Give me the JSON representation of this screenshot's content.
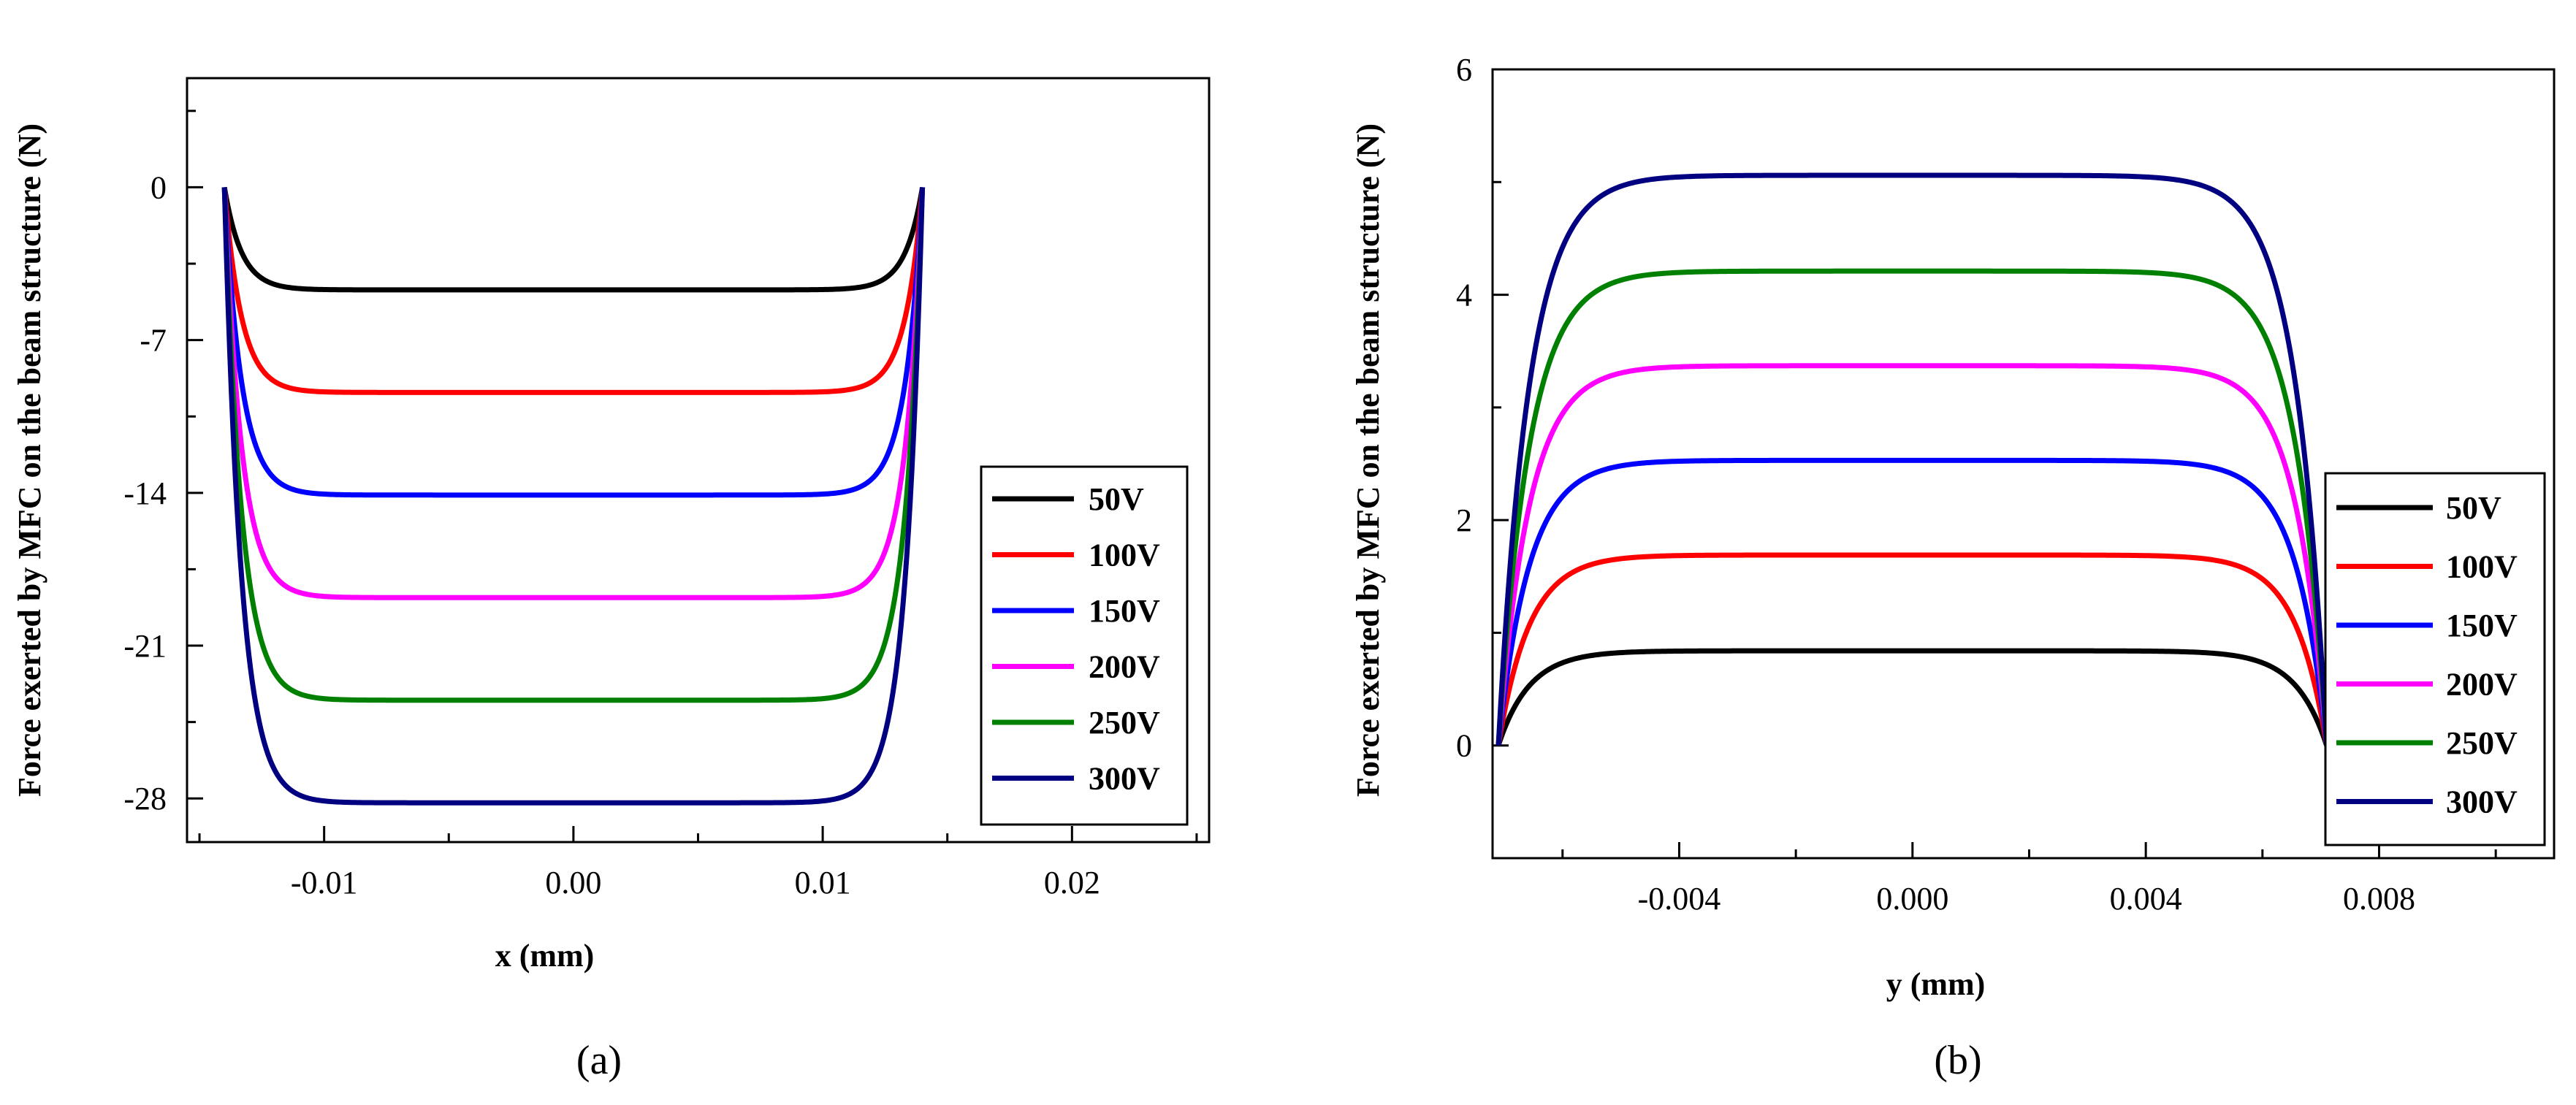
{
  "chart_data": [
    {
      "type": "line",
      "panel_label": "(a)",
      "xlabel": "x (mm)",
      "ylabel": "Force exerted by MFC on the beam structure (N)",
      "xlim": [
        -0.0155,
        0.0255
      ],
      "ylim": [
        -30,
        5
      ],
      "x_ticks": [
        -0.01,
        0.0,
        0.01,
        0.02
      ],
      "x_tick_labels": [
        "-0.01",
        "0.00",
        "0.01",
        "0.02"
      ],
      "y_ticks": [
        0,
        -7,
        -14,
        -21,
        -28
      ],
      "y_tick_labels": [
        "0",
        "-7",
        "-14",
        "-21",
        "-28"
      ],
      "grid": false,
      "legend_position": "right",
      "curve_shape": {
        "x_start": -0.014,
        "x_end": 0.014,
        "edge_width": 0.0022
      },
      "series": [
        {
          "name": "50V",
          "color": "#000000",
          "plateau": -4.7
        },
        {
          "name": "100V",
          "color": "#ff0000",
          "plateau": -9.4
        },
        {
          "name": "150V",
          "color": "#0000ff",
          "plateau": -14.1
        },
        {
          "name": "200V",
          "color": "#ff00ff",
          "plateau": -18.8
        },
        {
          "name": "250V",
          "color": "#008000",
          "plateau": -23.5
        },
        {
          "name": "300V",
          "color": "#000080",
          "plateau": -28.2
        }
      ]
    },
    {
      "type": "line",
      "panel_label": "(b)",
      "xlabel": "y (mm)",
      "ylabel": "Force exerted by MFC on the beam structure (N)",
      "xlim": [
        -0.0072,
        0.011
      ],
      "ylim": [
        -1,
        6
      ],
      "x_ticks": [
        -0.004,
        0.0,
        0.004,
        0.008
      ],
      "x_tick_labels": [
        "-0.004",
        "0.000",
        "0.004",
        "0.008"
      ],
      "y_ticks": [
        0,
        2,
        4,
        6
      ],
      "y_tick_labels": [
        "0",
        "2",
        "4",
        "6"
      ],
      "grid": false,
      "legend_position": "right",
      "curve_shape": {
        "x_start": -0.0071,
        "x_end": 0.0071,
        "edge_width": 0.0017
      },
      "series": [
        {
          "name": "50V",
          "color": "#000000",
          "plateau": 0.84
        },
        {
          "name": "100V",
          "color": "#ff0000",
          "plateau": 1.69
        },
        {
          "name": "150V",
          "color": "#0000ff",
          "plateau": 2.53
        },
        {
          "name": "200V",
          "color": "#ff00ff",
          "plateau": 3.37
        },
        {
          "name": "250V",
          "color": "#008000",
          "plateau": 4.21
        },
        {
          "name": "300V",
          "color": "#000080",
          "plateau": 5.06
        }
      ]
    }
  ]
}
